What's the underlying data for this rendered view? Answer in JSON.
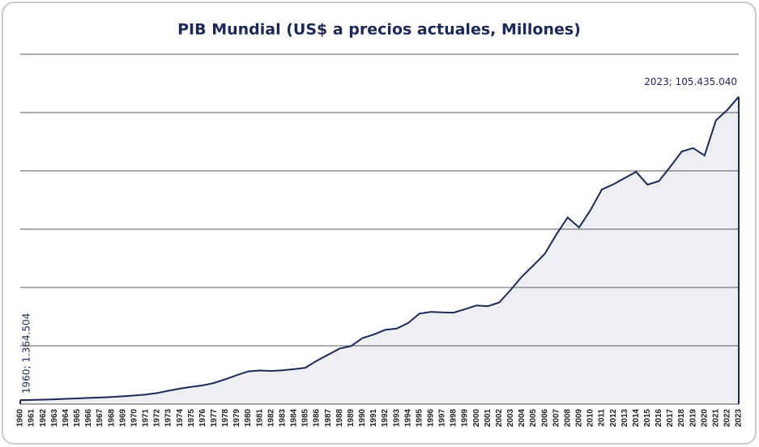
{
  "chart_data": {
    "type": "area",
    "title": "PIB Mundial (US$ a precios actuales, Millones)",
    "categories": [
      "1960",
      "1961",
      "1962",
      "1963",
      "1964",
      "1965",
      "1966",
      "1967",
      "1968",
      "1969",
      "1970",
      "1971",
      "1972",
      "1973",
      "1974",
      "1975",
      "1976",
      "1977",
      "1978",
      "1979",
      "1980",
      "1981",
      "1982",
      "1983",
      "1984",
      "1985",
      "1986",
      "1987",
      "1988",
      "1989",
      "1990",
      "1991",
      "1992",
      "1993",
      "1994",
      "1995",
      "1996",
      "1997",
      "1998",
      "1999",
      "2000",
      "2001",
      "2002",
      "2003",
      "2004",
      "2005",
      "2006",
      "2007",
      "2008",
      "2009",
      "2010",
      "2011",
      "2012",
      "2013",
      "2014",
      "2015",
      "2016",
      "2017",
      "2018",
      "2019",
      "2020",
      "2021",
      "2022",
      "2023"
    ],
    "series": [
      {
        "name": "PIB Mundial",
        "color": "#1c2957",
        "fill": "#eeeff3",
        "values": [
          1364504,
          1420000,
          1530000,
          1640000,
          1800000,
          1960000,
          2130000,
          2260000,
          2440000,
          2690000,
          2960000,
          3270000,
          3770000,
          4590000,
          5300000,
          5900000,
          6420000,
          7260000,
          8540000,
          9940000,
          11230000,
          11540000,
          11370000,
          11590000,
          11980000,
          12470000,
          14870000,
          16930000,
          19040000,
          19870000,
          22630000,
          23860000,
          25480000,
          25900000,
          27780000,
          31030000,
          31640000,
          31450000,
          31370000,
          32550000,
          33830000,
          33580000,
          34860000,
          39160000,
          43810000,
          47600000,
          51590000,
          58140000,
          64030000,
          60600000,
          66540000,
          73630000,
          75380000,
          77550000,
          79680000,
          75260000,
          76490000,
          81430000,
          86620000,
          87830000,
          85260000,
          97330000,
          100920000,
          105435040
        ],
        "value_labels": [
          "1960; 1.364.504",
          null,
          null,
          null,
          null,
          null,
          null,
          null,
          null,
          null,
          null,
          null,
          null,
          null,
          null,
          null,
          null,
          null,
          null,
          null,
          null,
          null,
          null,
          null,
          null,
          null,
          null,
          null,
          null,
          null,
          null,
          null,
          null,
          null,
          null,
          null,
          null,
          null,
          null,
          null,
          null,
          null,
          null,
          null,
          null,
          null,
          null,
          null,
          null,
          null,
          null,
          null,
          null,
          null,
          null,
          null,
          null,
          null,
          null,
          null,
          null,
          null,
          null,
          "2023; 105.435.040"
        ]
      }
    ],
    "ylim": [
      0,
      120000000
    ],
    "yticks": [
      0,
      20000000,
      40000000,
      60000000,
      80000000,
      100000000,
      120000000
    ],
    "grid": true
  }
}
